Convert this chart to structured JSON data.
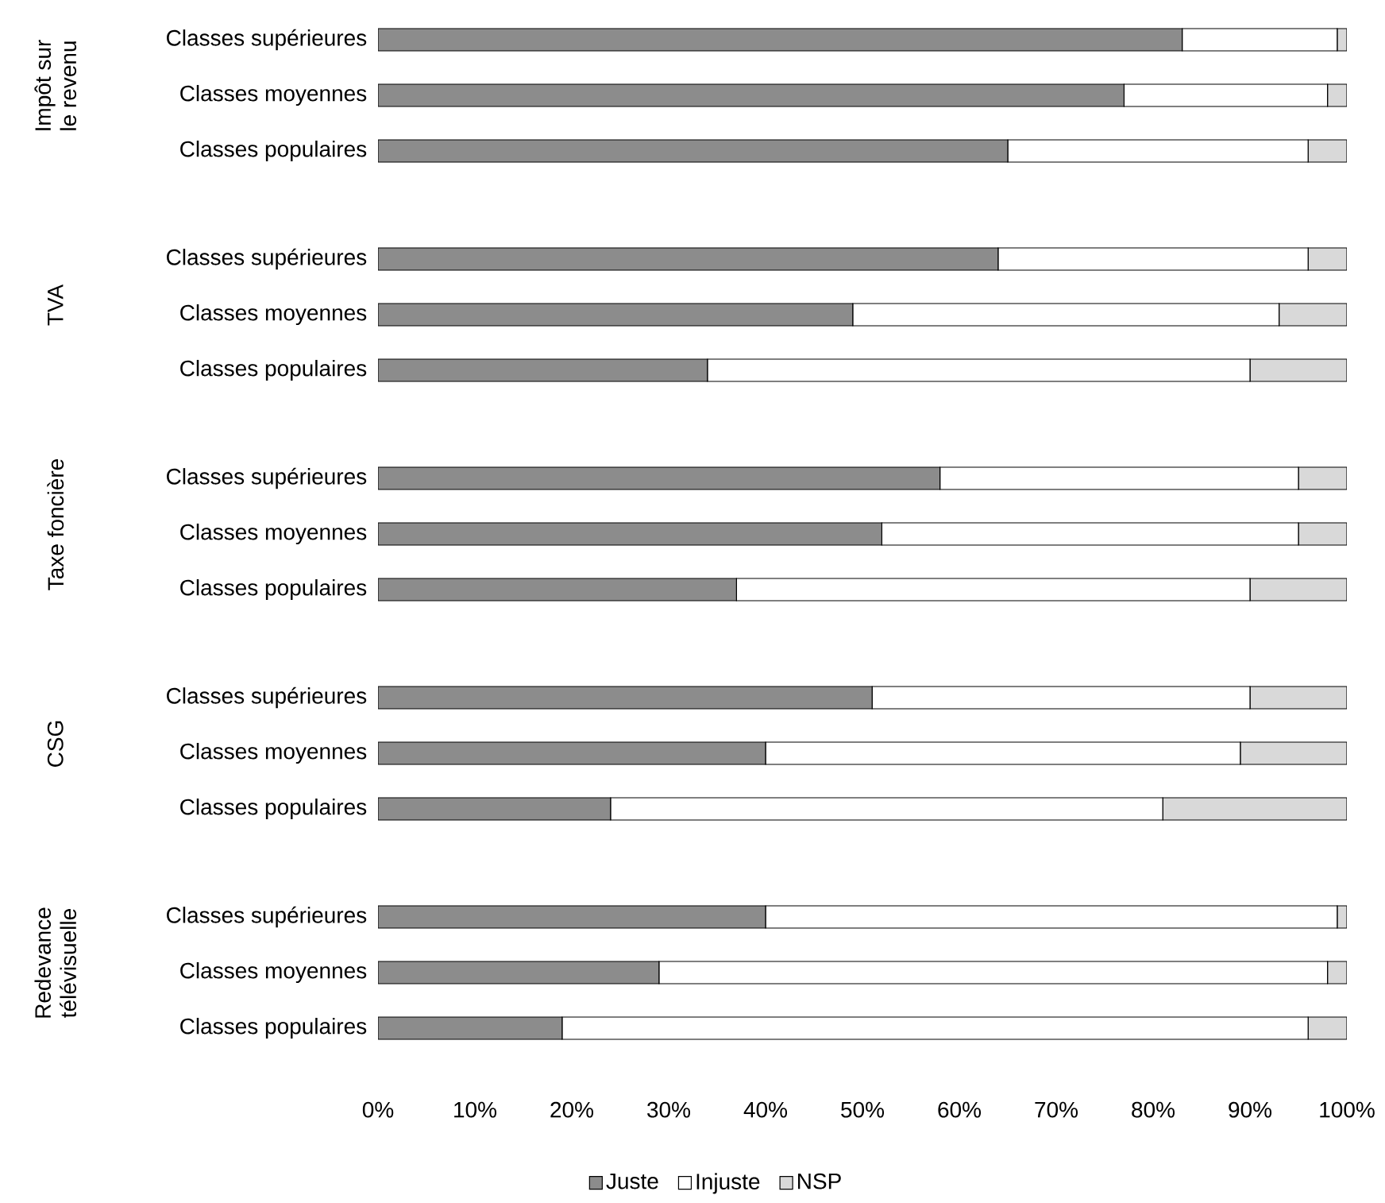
{
  "chart_data": [
    {
      "type": "bar",
      "orientation": "horizontal",
      "stacked": true,
      "title": "Impôt sur le revenu",
      "categories": [
        "Classes supérieures",
        "Classes moyennes",
        "Classes populaires"
      ],
      "series": [
        {
          "color": "#8c8c8c",
          "values": [
            83,
            77,
            65
          ]
        },
        {
          "color": "#ffffff",
          "values": [
            16,
            21,
            31
          ]
        },
        {
          "color": "#d9d9d9",
          "values": [
            1,
            2,
            4
          ]
        }
      ],
      "xlim": [
        0,
        100
      ],
      "tick_labels": "y"
    },
    {
      "type": "bar",
      "orientation": "horizontal",
      "stacked": true,
      "title": "TVA",
      "categories": [
        "Classes supérieures",
        "Classes moyennes",
        "Classes populaires"
      ],
      "series": [
        {
          "color": "#8c8c8c",
          "values": [
            64,
            49,
            34
          ]
        },
        {
          "color": "#ffffff",
          "values": [
            32,
            44,
            56
          ]
        },
        {
          "color": "#d9d9d9",
          "values": [
            4,
            7,
            10
          ]
        }
      ],
      "xlim": [
        0,
        100
      ],
      "tick_labels": "y"
    },
    {
      "type": "bar",
      "orientation": "horizontal",
      "stacked": true,
      "title": "Taxe foncière",
      "categories": [
        "Classes supérieures",
        "Classes moyennes",
        "Classes populaires"
      ],
      "series": [
        {
          "color": "#8c8c8c",
          "values": [
            58,
            52,
            37
          ]
        },
        {
          "color": "#ffffff",
          "values": [
            37,
            43,
            53
          ]
        },
        {
          "color": "#d9d9d9",
          "values": [
            5,
            5,
            10
          ]
        }
      ],
      "xlim": [
        0,
        100
      ],
      "tick_labels": "y"
    },
    {
      "type": "bar",
      "orientation": "horizontal",
      "stacked": true,
      "title": "CSG",
      "categories": [
        "Classes supérieures",
        "Classes moyennes",
        "Classes populaires"
      ],
      "series": [
        {
          "color": "#8c8c8c",
          "values": [
            51,
            40,
            24
          ]
        },
        {
          "color": "#ffffff",
          "values": [
            39,
            49,
            57
          ]
        },
        {
          "color": "#d9d9d9",
          "values": [
            10,
            11,
            19
          ]
        }
      ],
      "xlim": [
        0,
        100
      ],
      "tick_labels": "y"
    },
    {
      "type": "bar",
      "orientation": "horizontal",
      "stacked": true,
      "title": "Redevance télévisuelle",
      "categories": [
        "Classes supérieures",
        "Classes moyennes",
        "Classes populaires"
      ],
      "series": [
        {
          "name": "Juste",
          "color": "#8c8c8c",
          "values": [
            40,
            29,
            19
          ]
        },
        {
          "name": "Injuste",
          "color": "#ffffff",
          "values": [
            59,
            69,
            77
          ]
        },
        {
          "name": "NSP",
          "color": "#d9d9d9",
          "values": [
            1,
            2,
            4
          ]
        }
      ],
      "xlim": [
        0,
        100
      ],
      "xticks": [
        {
          "value": 0,
          "label": "0%"
        },
        {
          "value": 10,
          "label": "10%"
        },
        {
          "value": 20,
          "label": "20%"
        },
        {
          "value": 30,
          "label": "30%"
        },
        {
          "value": 40,
          "label": "40%"
        },
        {
          "value": 50,
          "label": "50%"
        },
        {
          "value": 60,
          "label": "60%"
        },
        {
          "value": 70,
          "label": "70%"
        },
        {
          "value": 80,
          "label": "80%"
        },
        {
          "value": 90,
          "label": "90%"
        },
        {
          "value": 100,
          "label": "100%"
        }
      ],
      "legend": "bottom"
    }
  ]
}
